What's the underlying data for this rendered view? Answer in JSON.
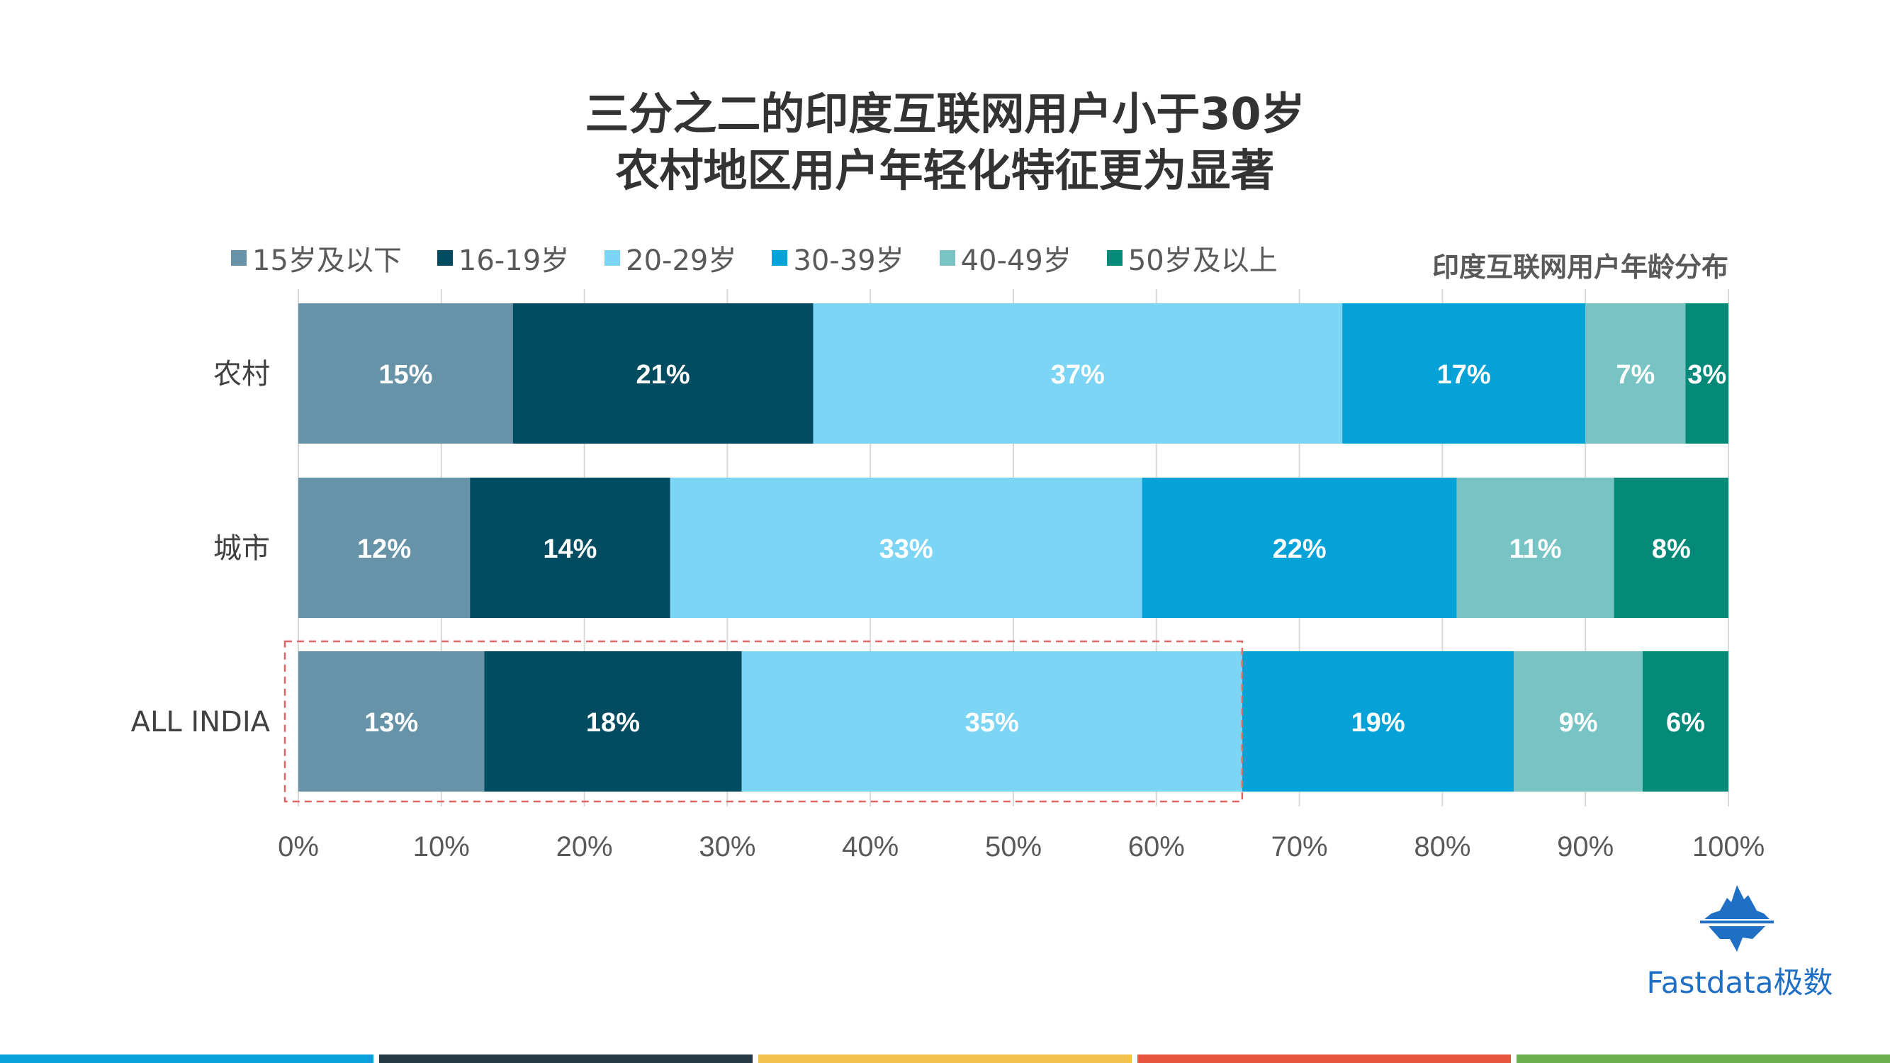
{
  "title": {
    "line1": "三分之二的印度互联网用户小于30岁",
    "line2": "农村地区用户年轻化特征更为显著"
  },
  "subtitle": "印度互联网用户年龄分布",
  "legend": [
    {
      "label": "15岁及以下",
      "color": "#6693a8"
    },
    {
      "label": "16-19岁",
      "color": "#024c62"
    },
    {
      "label": "20-29岁",
      "color": "#7dd5f5"
    },
    {
      "label": "30-39岁",
      "color": "#04a2d7"
    },
    {
      "label": "40-49岁",
      "color": "#78c3c3"
    },
    {
      "label": "50岁及以上",
      "color": "#058a7a"
    }
  ],
  "chart_data": {
    "type": "bar",
    "orientation": "horizontal",
    "stacked": true,
    "title": "三分之二的印度互联网用户小于30岁 农村地区用户年轻化特征更为显著",
    "subtitle": "印度互联网用户年龄分布",
    "categories": [
      "农村",
      "城市",
      "ALL INDIA"
    ],
    "series": [
      {
        "name": "15岁及以下",
        "values": [
          15,
          12,
          13
        ],
        "labels": [
          "15%",
          "12%",
          "13%"
        ]
      },
      {
        "name": "16-19岁",
        "values": [
          21,
          14,
          18
        ],
        "labels": [
          "21%",
          "14%",
          "18%"
        ]
      },
      {
        "name": "20-29岁",
        "values": [
          37,
          33,
          35
        ],
        "labels": [
          "37%",
          "33%",
          "35%"
        ]
      },
      {
        "name": "30-39岁",
        "values": [
          17,
          22,
          19
        ],
        "labels": [
          "17%",
          "22%",
          "19%"
        ]
      },
      {
        "name": "40-49岁",
        "values": [
          7,
          11,
          9
        ],
        "labels": [
          "7%",
          "11%",
          "9%"
        ]
      },
      {
        "name": "50岁及以上",
        "values": [
          3,
          8,
          6
        ],
        "labels": [
          "3%",
          "8%",
          "6%"
        ]
      }
    ],
    "xlim": [
      0,
      100
    ],
    "x_ticks": [
      "0%",
      "10%",
      "20%",
      "30%",
      "40%",
      "50%",
      "60%",
      "70%",
      "80%",
      "90%",
      "100%"
    ],
    "grid": true,
    "legend_position": "top-left",
    "highlight": {
      "category": "ALL INDIA",
      "from": 0,
      "to": 66,
      "style": "dashed",
      "color": "#e06666"
    }
  },
  "logo": {
    "text": "Fastdata极数",
    "color": "#1f6fc4"
  },
  "footer_colors": [
    "#0aa0dc",
    "#253845",
    "#f2c14e",
    "#e8553e",
    "#6ab04c"
  ]
}
